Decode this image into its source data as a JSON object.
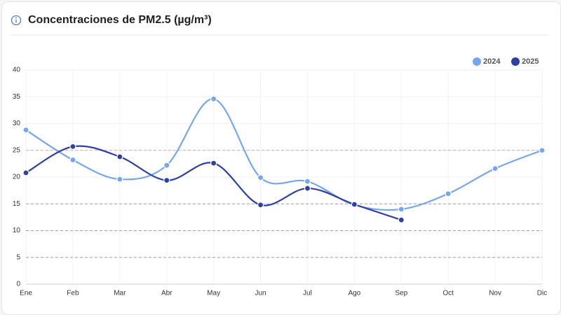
{
  "chart_data": {
    "type": "line",
    "title": "Concentraciones de PM2.5 (µg/m³)",
    "categories": [
      "Ene",
      "Feb",
      "Mar",
      "Abr",
      "May",
      "Jun",
      "Jul",
      "Ago",
      "Sep",
      "Oct",
      "Nov",
      "Dic"
    ],
    "series": [
      {
        "name": "2024",
        "color": "#76a6ee",
        "values": [
          28.8,
          23.2,
          19.6,
          22.2,
          34.6,
          19.9,
          19.2,
          14.8,
          14.0,
          16.9,
          21.6,
          25.0
        ]
      },
      {
        "name": "2025",
        "color": "#2e40a3",
        "values": [
          20.8,
          25.7,
          23.8,
          19.4,
          22.6,
          14.8,
          17.9,
          14.9,
          12.0,
          null,
          null,
          null
        ]
      }
    ],
    "ylim": [
      0,
      40
    ],
    "yticks": [
      0,
      5,
      10,
      15,
      20,
      25,
      30,
      35,
      40
    ],
    "grid": true,
    "legend": "top-right",
    "reference_lines": [
      {
        "value": 25,
        "color": "#e2a3a8"
      },
      {
        "value": 15,
        "color": "#a0a0a8"
      },
      {
        "value": 10,
        "color": "#a0a0a8"
      },
      {
        "value": 5,
        "color": "#a0a0a8"
      }
    ]
  }
}
